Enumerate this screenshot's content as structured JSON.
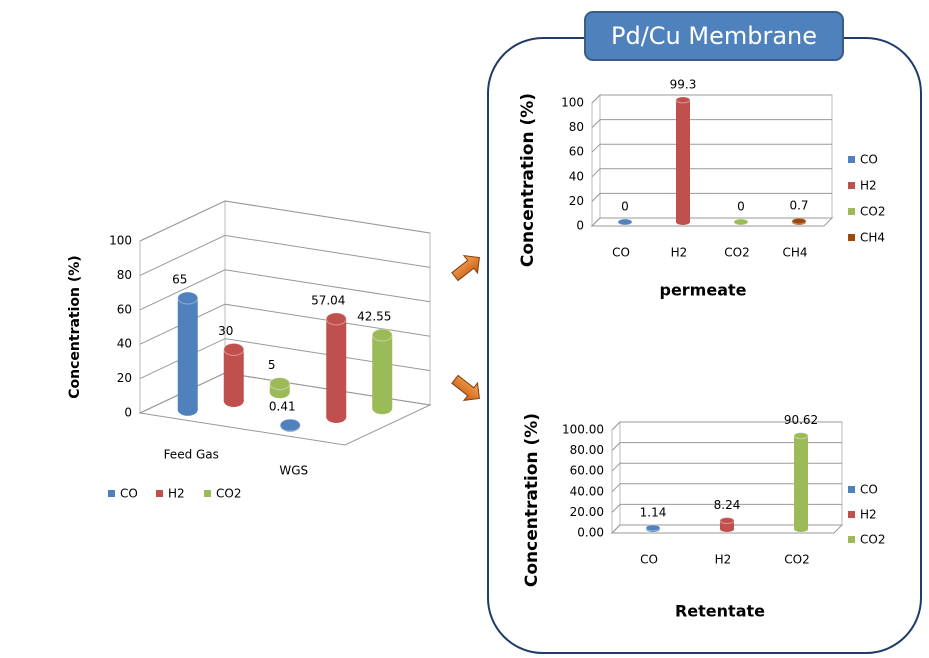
{
  "box_title": "Pd/Cu Membrane",
  "chart_data": [
    {
      "type": "bar3d",
      "ylabel": "Concentration (%)",
      "categories": [
        "Feed Gas",
        "WGS"
      ],
      "series": [
        {
          "name": "CO",
          "color": "#4f81bd",
          "values": [
            65,
            0.41
          ]
        },
        {
          "name": "H2",
          "color": "#c0504d",
          "values": [
            30,
            57.04
          ]
        },
        {
          "name": "CO2",
          "color": "#9bbb59",
          "values": [
            5,
            42.55
          ]
        }
      ],
      "ylim": [
        0,
        100
      ],
      "yticks": [
        0,
        20,
        40,
        60,
        80,
        100
      ],
      "grid": true,
      "legend": "bottom"
    },
    {
      "type": "bar3d",
      "xlabel": "permeate",
      "ylabel": "Concentration (%)",
      "categories": [
        "CO",
        "H2",
        "CO2",
        "CH4"
      ],
      "series": [
        {
          "name": "CO",
          "color": "#4f81bd",
          "values": [
            0,
            null,
            null,
            null
          ]
        },
        {
          "name": "H2",
          "color": "#c0504d",
          "values": [
            null,
            99.3,
            null,
            null
          ]
        },
        {
          "name": "CO2",
          "color": "#9bbb59",
          "values": [
            null,
            null,
            0,
            null
          ]
        },
        {
          "name": "CH4",
          "color": "#9e480e",
          "values": [
            null,
            null,
            null,
            0.7
          ]
        }
      ],
      "ylim": [
        0,
        100
      ],
      "yticks": [
        0,
        20,
        40,
        60,
        80,
        100
      ],
      "grid": true,
      "legend": "right"
    },
    {
      "type": "bar3d",
      "xlabel": "Retentate",
      "ylabel": "Concentration (%)",
      "categories": [
        "CO",
        "H2",
        "CO2"
      ],
      "series": [
        {
          "name": "CO",
          "color": "#4f81bd",
          "values": [
            1.14,
            null,
            null
          ]
        },
        {
          "name": "H2",
          "color": "#c0504d",
          "values": [
            null,
            8.24,
            null
          ]
        },
        {
          "name": "CO2",
          "color": "#9bbb59",
          "values": [
            null,
            null,
            90.62
          ]
        }
      ],
      "ylim": [
        0,
        100
      ],
      "yticks": [
        {
          "value": 0,
          "label": "0.00"
        },
        {
          "value": 20,
          "label": "20.00"
        },
        {
          "value": 40,
          "label": "40.00"
        },
        {
          "value": 60,
          "label": "60.00"
        },
        {
          "value": 80,
          "label": "80.00"
        },
        {
          "value": 100,
          "label": "100.00"
        }
      ],
      "grid": true,
      "legend": "right"
    }
  ]
}
